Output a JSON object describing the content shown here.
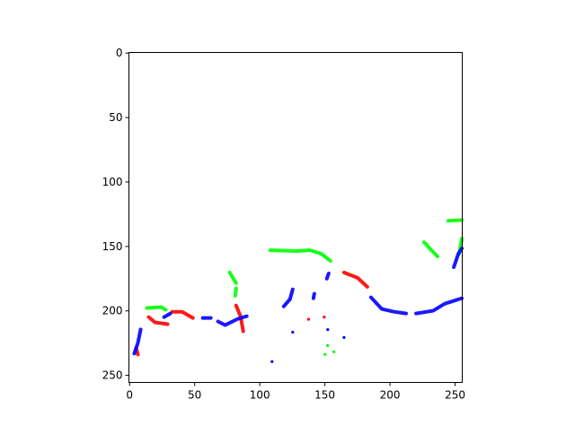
{
  "chart_data": {
    "type": "image",
    "title": "",
    "xlabel": "",
    "ylabel": "",
    "xlim": [
      0,
      256
    ],
    "ylim": [
      256,
      0
    ],
    "y_inverted": true,
    "grid": false,
    "background": "#ffffff",
    "xticks": [
      "0",
      "50",
      "100",
      "150",
      "200",
      "250"
    ],
    "yticks": [
      "0",
      "50",
      "100",
      "150",
      "200",
      "250"
    ],
    "xtick_values": [
      0,
      50,
      100,
      150,
      200,
      250
    ],
    "ytick_values": [
      0,
      50,
      100,
      150,
      200,
      250
    ],
    "colors": {
      "green": "#00ff00",
      "red": "#ff0000",
      "blue": "#0000ff"
    },
    "strokes": [
      {
        "color": "green",
        "points": [
          [
            108.5,
            153.4
          ],
          [
            128.5,
            154.1
          ],
          [
            138.9,
            153.4
          ],
          [
            147.9,
            156.2
          ],
          [
            154.8,
            161.7
          ]
        ]
      },
      {
        "color": "green",
        "points": [
          [
            226.7,
            147.2
          ],
          [
            231,
            152
          ],
          [
            237,
            158.3
          ]
        ]
      },
      {
        "color": "green",
        "points": [
          [
            245.3,
            130.6
          ],
          [
            255.7,
            130
          ]
        ]
      },
      {
        "color": "green",
        "points": [
          [
            255.7,
            144.4
          ],
          [
            253.6,
            156.2
          ]
        ]
      },
      {
        "color": "green",
        "points": [
          [
            13.8,
            198.3
          ],
          [
            24.9,
            197.6
          ],
          [
            28.3,
            199.7
          ]
        ]
      },
      {
        "color": "green",
        "points": [
          [
            77.4,
            170.7
          ],
          [
            82.3,
            179
          ]
        ]
      },
      {
        "color": "green",
        "points": [
          [
            82.3,
            183
          ],
          [
            81.6,
            188.7
          ]
        ]
      },
      {
        "color": "red",
        "points": [
          [
            15.2,
            205.3
          ],
          [
            20,
            209.4
          ],
          [
            29.7,
            210.8
          ]
        ]
      },
      {
        "color": "red",
        "points": [
          [
            33.2,
            201.2
          ],
          [
            40.9,
            201.2
          ],
          [
            49.1,
            206
          ]
        ]
      },
      {
        "color": "red",
        "points": [
          [
            82.3,
            196.3
          ],
          [
            85.7,
            204.6
          ],
          [
            87.8,
            216.3
          ]
        ]
      },
      {
        "color": "red",
        "points": [
          [
            165.2,
            170.7
          ],
          [
            175.5,
            174.8
          ],
          [
            183.1,
            181.8
          ]
        ]
      },
      {
        "color": "red",
        "points": [
          [
            5.5,
            229.4
          ],
          [
            6.9,
            234.3
          ]
        ]
      },
      {
        "color": "blue",
        "points": [
          [
            4.1,
            233.6
          ],
          [
            6.9,
            225.3
          ],
          [
            9,
            214.9
          ]
        ]
      },
      {
        "color": "blue",
        "points": [
          [
            27,
            205.3
          ],
          [
            31.8,
            202.5
          ]
        ]
      },
      {
        "color": "blue",
        "points": [
          [
            56.7,
            206
          ],
          [
            62.9,
            206
          ]
        ]
      },
      {
        "color": "blue",
        "points": [
          [
            68.4,
            208.7
          ],
          [
            73.9,
            211.5
          ],
          [
            83.6,
            206.7
          ],
          [
            90.5,
            204.6
          ]
        ]
      },
      {
        "color": "blue",
        "points": [
          [
            118.9,
            197
          ],
          [
            123.7,
            191.4
          ],
          [
            125.8,
            183.8
          ]
        ]
      },
      {
        "color": "blue",
        "points": [
          [
            141.7,
            190.7
          ],
          [
            142.4,
            187.2
          ]
        ]
      },
      {
        "color": "blue",
        "points": [
          [
            152,
            175.5
          ],
          [
            153.4,
            171.4
          ]
        ]
      },
      {
        "color": "blue",
        "points": [
          [
            185.9,
            190
          ],
          [
            194.2,
            199
          ],
          [
            203.2,
            201.1
          ],
          [
            212.9,
            202.5
          ]
        ]
      },
      {
        "color": "blue",
        "points": [
          [
            220.5,
            202.5
          ],
          [
            233.6,
            200.4
          ],
          [
            242.6,
            194.9
          ],
          [
            255.7,
            190.7
          ]
        ]
      },
      {
        "color": "blue",
        "points": [
          [
            249.5,
            166.6
          ],
          [
            253,
            156.2
          ],
          [
            255.7,
            152
          ]
        ]
      }
    ],
    "dots": [
      {
        "color": "green",
        "point": [
          152.6,
          227.4
        ]
      },
      {
        "color": "green",
        "point": [
          157.4,
          232.2
        ]
      },
      {
        "color": "green",
        "point": [
          150.6,
          234.3
        ]
      },
      {
        "color": "red",
        "point": [
          150,
          205.3
        ]
      },
      {
        "color": "red",
        "point": [
          138,
          207
        ]
      },
      {
        "color": "blue",
        "point": [
          109.9,
          239.8
        ]
      },
      {
        "color": "blue",
        "point": [
          152.7,
          215
        ]
      },
      {
        "color": "blue",
        "point": [
          165.2,
          221.1
        ]
      },
      {
        "color": "blue",
        "point": [
          125.8,
          217
        ]
      }
    ]
  }
}
